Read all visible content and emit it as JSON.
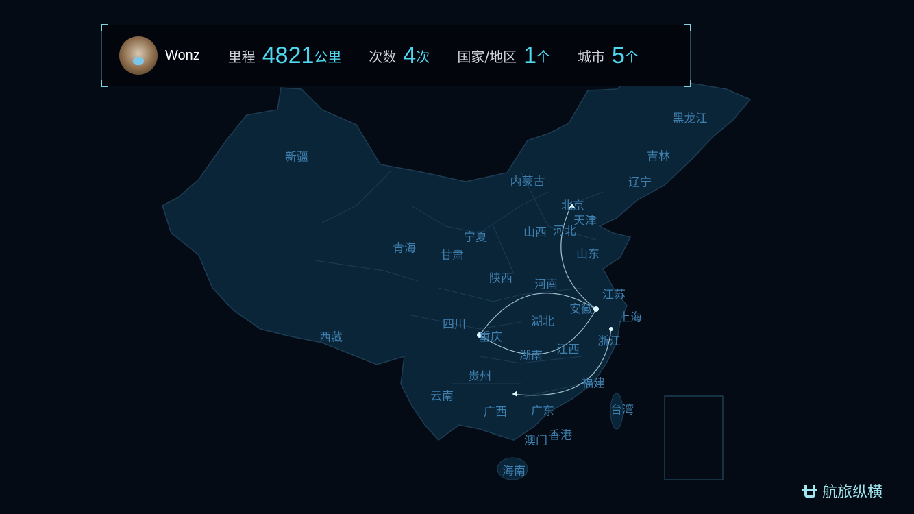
{
  "user": {
    "name": "Wonz",
    "avatar": "cat-avatar"
  },
  "stats": [
    {
      "label": "里程",
      "value": "4821",
      "unit": "公里"
    },
    {
      "label": "次数",
      "value": "4",
      "unit": "次"
    },
    {
      "label": "国家/地区",
      "value": "1",
      "unit": "个"
    },
    {
      "label": "城市",
      "value": "5",
      "unit": "个"
    }
  ],
  "provinces": [
    "新疆",
    "西藏",
    "青海",
    "甘肃",
    "宁夏",
    "内蒙古",
    "黑龙江",
    "吉林",
    "辽宁",
    "北京",
    "天津",
    "河北",
    "山西",
    "山东",
    "陕西",
    "河南",
    "江苏",
    "安徽",
    "上海",
    "湖北",
    "四川",
    "重庆",
    "浙江",
    "湖南",
    "江西",
    "贵州",
    "云南",
    "福建",
    "广西",
    "广东",
    "台湾",
    "香港",
    "澳门",
    "海南"
  ],
  "routes": [
    {
      "from": "安徽",
      "to": "北京"
    },
    {
      "from": "重庆",
      "to": "安徽"
    },
    {
      "from": "安徽",
      "to": "重庆"
    },
    {
      "from": "浙江",
      "to": "广东"
    }
  ],
  "colors": {
    "land": "#0a2438",
    "border": "#1d3d55",
    "label": "#3f7fae",
    "accent": "#4fd8f0",
    "background": "#050b14"
  },
  "logo": {
    "text": "航旅纵横",
    "icon": "hanglv-logo-icon"
  }
}
